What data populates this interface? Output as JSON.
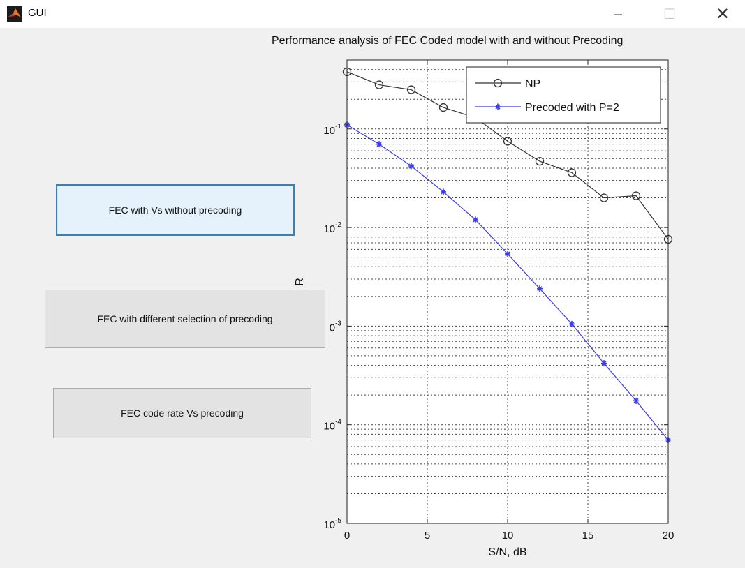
{
  "window": {
    "title": "GUI",
    "minimize_glyph": "–",
    "maximize_glyph": "☐",
    "close_glyph": "✕"
  },
  "buttons": [
    {
      "label": "FEC with Vs without precoding",
      "active": true
    },
    {
      "label": "FEC with different selection of precoding",
      "active": false
    },
    {
      "label": "FEC code rate Vs precoding",
      "active": false
    }
  ],
  "chart_data": {
    "type": "line",
    "title": "Performance analysis of FEC Coded model with and without Precoding",
    "xlabel": "S/N, dB",
    "ylabel": "R",
    "xlim": [
      0,
      20
    ],
    "ylim": [
      1e-05,
      0.5
    ],
    "yscale": "log",
    "grid": true,
    "legend_position": "top-right",
    "xticks": [
      0,
      5,
      10,
      15,
      20
    ],
    "yticks": [
      {
        "base": "10",
        "exp": "-1"
      },
      {
        "base": "10",
        "exp": "-2"
      },
      {
        "base": "0",
        "exp": "-3"
      },
      {
        "base": "10",
        "exp": "-4"
      },
      {
        "base": "10",
        "exp": "-5"
      }
    ],
    "series": [
      {
        "name": "NP",
        "color": "#333333",
        "marker": "circle",
        "x": [
          0,
          2,
          4,
          6,
          8,
          10,
          12,
          14,
          16,
          18,
          20
        ],
        "y": [
          0.38,
          0.28,
          0.25,
          0.165,
          0.13,
          0.075,
          0.047,
          0.036,
          0.02,
          0.021,
          0.0076
        ]
      },
      {
        "name": "Precoded with P=2",
        "color": "#3a3aee",
        "marker": "star",
        "x": [
          0,
          2,
          4,
          6,
          8,
          10,
          12,
          14,
          16,
          18,
          20
        ],
        "y": [
          0.11,
          0.07,
          0.042,
          0.023,
          0.012,
          0.0054,
          0.0024,
          0.00105,
          0.00042,
          0.000175,
          7e-05
        ]
      }
    ]
  }
}
